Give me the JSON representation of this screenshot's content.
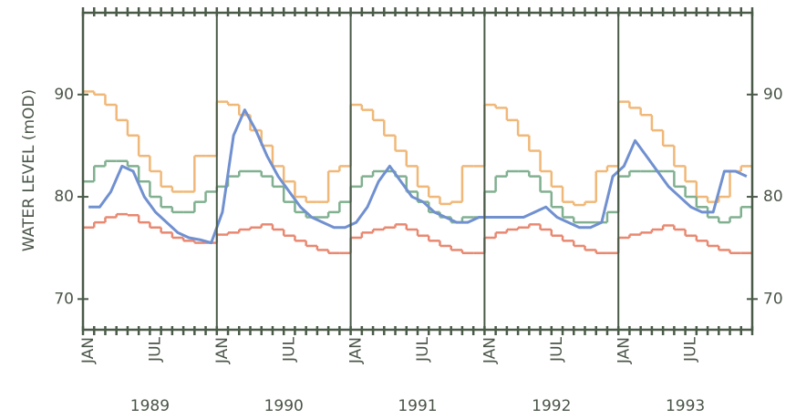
{
  "chart_data": {
    "type": "line",
    "y_label": "WATER LEVEL (mOD)",
    "categories": [
      "JAN",
      null,
      null,
      null,
      null,
      null,
      "JUL",
      null,
      null,
      null,
      null,
      null,
      "JAN",
      null,
      null,
      null,
      null,
      null,
      "JUL",
      null,
      null,
      null,
      null,
      null,
      "JAN",
      null,
      null,
      null,
      null,
      null,
      "JUL",
      null,
      null,
      null,
      null,
      null,
      "JAN",
      null,
      null,
      null,
      null,
      null,
      "JUL",
      null,
      null,
      null,
      null,
      null,
      "JAN",
      null,
      null,
      null,
      null,
      null,
      "JUL",
      null,
      null,
      null,
      null,
      null
    ],
    "groups": [
      "1989",
      "1990",
      "1991",
      "1992",
      "1993"
    ],
    "ylim": [
      67,
      98
    ],
    "yticks": [
      70,
      80,
      90
    ],
    "series": [
      {
        "color": "#f0b878",
        "step": true,
        "values": [
          90.3,
          90,
          89,
          87.5,
          86,
          84,
          82.5,
          81,
          80.5,
          80.5,
          84,
          84,
          89.3,
          89,
          88,
          86.5,
          85,
          83,
          81.5,
          80,
          79.5,
          79.5,
          82.5,
          83,
          89,
          88.5,
          87.5,
          86,
          84.5,
          83,
          81,
          80,
          79.3,
          79.5,
          83,
          83,
          89,
          88.7,
          87.5,
          86,
          84.5,
          82.5,
          81,
          79.5,
          79.2,
          79.5,
          82.5,
          83,
          89.3,
          88.7,
          88,
          86.5,
          85,
          83,
          81.5,
          80,
          79.5,
          80,
          82.5,
          83
        ]
      },
      {
        "color": "#80b090",
        "step": true,
        "values": [
          81.5,
          83,
          83.5,
          83.5,
          83,
          81.5,
          80,
          79,
          78.5,
          78.5,
          79.5,
          80.5,
          81,
          82,
          82.5,
          82.5,
          82,
          81,
          79.5,
          78.5,
          78,
          78,
          78.5,
          79.5,
          81,
          82,
          82.5,
          82.5,
          82,
          80.5,
          79.5,
          78.5,
          78,
          77.5,
          78,
          78,
          80.5,
          82,
          82.5,
          82.5,
          82,
          80.5,
          79,
          78,
          77.5,
          77.5,
          77.5,
          78.5,
          82,
          82.5,
          82.5,
          82.5,
          82.5,
          81,
          80,
          79,
          78,
          77.5,
          78,
          79
        ]
      },
      {
        "color": "#e88870",
        "step": true,
        "values": [
          77,
          77.5,
          78,
          78.3,
          78.2,
          77.5,
          77,
          76.5,
          76,
          75.7,
          75.5,
          75.5,
          76.3,
          76.5,
          76.8,
          77,
          77.3,
          76.8,
          76.2,
          75.7,
          75.2,
          74.8,
          74.5,
          74.5,
          76,
          76.5,
          76.8,
          77,
          77.3,
          76.8,
          76.2,
          75.7,
          75.2,
          74.8,
          74.5,
          74.5,
          76,
          76.5,
          76.8,
          77,
          77.3,
          76.8,
          76.2,
          75.7,
          75.2,
          74.8,
          74.5,
          74.5,
          76,
          76.3,
          76.5,
          76.8,
          77.2,
          76.8,
          76.2,
          75.7,
          75.2,
          74.8,
          74.5,
          74.5
        ]
      },
      {
        "color": "#7090d0",
        "step": false,
        "values": [
          79,
          79,
          80.5,
          83,
          82.5,
          80,
          78.5,
          77.5,
          76.5,
          76,
          75.8,
          75.5,
          78.5,
          86,
          88.5,
          86.5,
          84,
          82,
          80.5,
          79,
          78,
          77.5,
          77,
          77,
          77.5,
          79,
          81.5,
          83,
          81.5,
          80,
          79.5,
          78.5,
          78,
          77.5,
          77.5,
          78,
          78,
          78,
          78,
          78,
          78.5,
          79,
          78,
          77.5,
          77,
          77,
          77.5,
          82,
          83,
          85.5,
          84,
          82.5,
          81,
          80,
          79,
          78.5,
          78.5,
          82.5,
          82.5,
          82
        ]
      }
    ]
  }
}
